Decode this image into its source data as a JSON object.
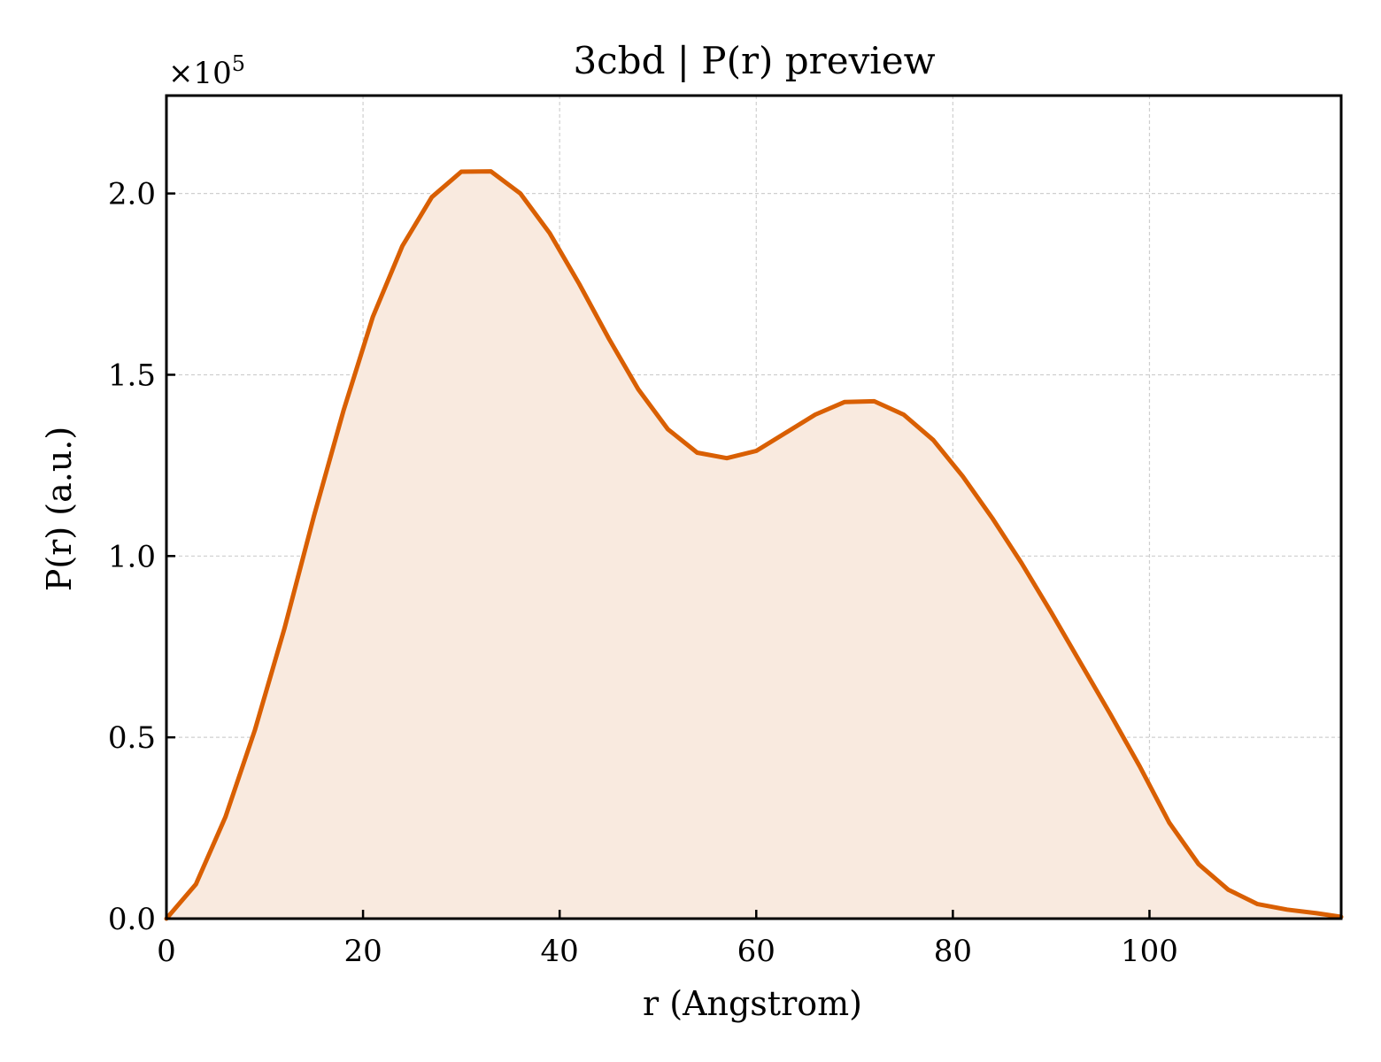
{
  "chart_data": {
    "type": "area",
    "title": "3cbd | P(r) preview",
    "xlabel": "r (Angstrom)",
    "ylabel": "P(r) (a.u.)",
    "y_multiplier_label": "×10",
    "y_multiplier_exponent": "5",
    "xlim": [
      0,
      119.5
    ],
    "ylim": [
      0,
      2.27
    ],
    "x_ticks": [
      0,
      20,
      40,
      60,
      80,
      100
    ],
    "y_ticks": [
      0.0,
      0.5,
      1.0,
      1.5,
      2.0
    ],
    "x_tick_labels": [
      "0",
      "20",
      "40",
      "60",
      "80",
      "100"
    ],
    "y_tick_labels": [
      "0.0",
      "0.5",
      "1.0",
      "1.5",
      "2.0"
    ],
    "grid": true,
    "line_color": "#d95f02",
    "fill_color": "#f9eadf",
    "series": [
      {
        "x": [
          0,
          3,
          6,
          9,
          12,
          15,
          18,
          21,
          24,
          27,
          30,
          33,
          36,
          39,
          42,
          45,
          48,
          51,
          54,
          57,
          60,
          63,
          66,
          69,
          72,
          75,
          78,
          81,
          84,
          87,
          90,
          93,
          96,
          99,
          102,
          105,
          108,
          111,
          114,
          117,
          119.5
        ],
        "y": [
          0.0,
          0.095,
          0.28,
          0.52,
          0.8,
          1.11,
          1.4,
          1.66,
          1.855,
          1.99,
          2.06,
          2.061,
          2.0,
          1.89,
          1.75,
          1.6,
          1.46,
          1.35,
          1.285,
          1.27,
          1.29,
          1.34,
          1.39,
          1.425,
          1.427,
          1.39,
          1.32,
          1.22,
          1.105,
          0.98,
          0.845,
          0.705,
          0.565,
          0.42,
          0.265,
          0.15,
          0.08,
          0.04,
          0.025,
          0.015,
          0.005
        ]
      }
    ]
  }
}
